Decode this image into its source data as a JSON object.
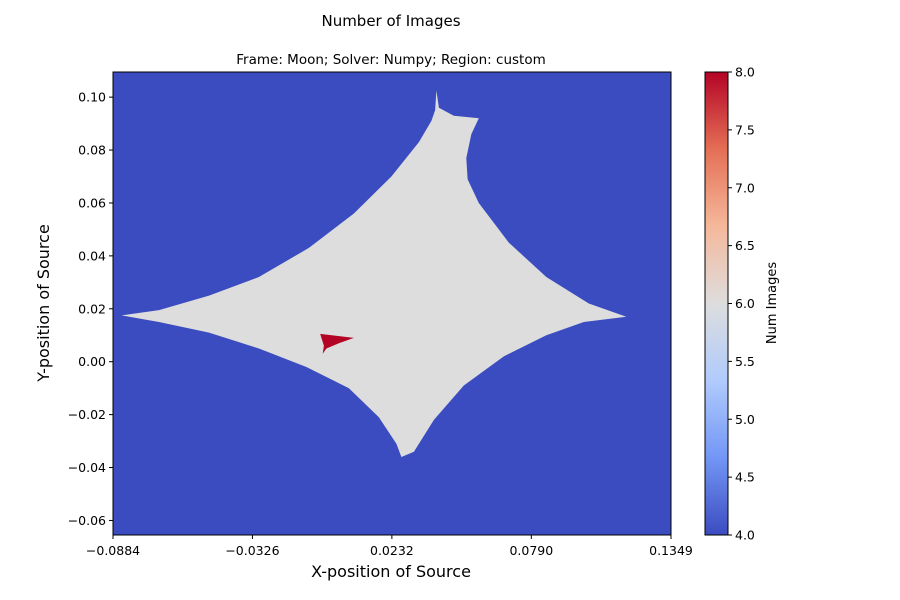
{
  "chart_data": {
    "type": "heatmap",
    "title": "Number of Images",
    "subtitle": "Frame: Moon; Solver: Numpy; Region: custom",
    "xlabel": "X-position of Source",
    "ylabel": "Y-position of Source",
    "xlim": [
      -0.0884,
      0.1349
    ],
    "ylim": [
      -0.0655,
      0.1095
    ],
    "x_ticks": [
      -0.0884,
      -0.0326,
      0.0232,
      0.079,
      0.1349
    ],
    "x_tick_labels": [
      "−0.0884",
      "−0.0326",
      "0.0232",
      "0.0790",
      "0.1349"
    ],
    "y_ticks": [
      -0.06,
      -0.04,
      -0.02,
      0.0,
      0.02,
      0.04,
      0.06,
      0.08,
      0.1
    ],
    "y_tick_labels": [
      "−0.06",
      "−0.04",
      "−0.02",
      "0.00",
      "0.02",
      "0.04",
      "0.06",
      "0.08",
      "0.10"
    ],
    "colorbar": {
      "label": "Num Images",
      "range": [
        4.0,
        8.0
      ],
      "ticks": [
        4.0,
        4.5,
        5.0,
        5.5,
        6.0,
        6.5,
        7.0,
        7.5,
        8.0
      ],
      "tick_labels": [
        "4.0",
        "4.5",
        "5.0",
        "5.5",
        "6.0",
        "6.5",
        "7.0",
        "7.5",
        "8.0"
      ],
      "colormap": "coolwarm",
      "colors": [
        "#3b4cc0",
        "#7396f5",
        "#b0cbfc",
        "#dddddd",
        "#f5b89b",
        "#e46f55",
        "#b40426"
      ]
    },
    "background_value": 4,
    "regions": [
      {
        "value": 6,
        "color": "#dddddd",
        "outline": [
          [
            0.041,
            0.1025
          ],
          [
            0.042,
            0.096
          ],
          [
            0.048,
            0.093
          ],
          [
            0.058,
            0.092
          ],
          [
            0.055,
            0.086
          ],
          [
            0.053,
            0.077
          ],
          [
            0.0535,
            0.069
          ],
          [
            0.058,
            0.06
          ],
          [
            0.07,
            0.045
          ],
          [
            0.085,
            0.032
          ],
          [
            0.102,
            0.022
          ],
          [
            0.117,
            0.017
          ],
          [
            0.1,
            0.015
          ],
          [
            0.085,
            0.01
          ],
          [
            0.068,
            0.002
          ],
          [
            0.052,
            -0.009
          ],
          [
            0.04,
            -0.022
          ],
          [
            0.032,
            -0.034
          ],
          [
            0.027,
            -0.036
          ],
          [
            0.025,
            -0.031
          ],
          [
            0.018,
            -0.021
          ],
          [
            0.006,
            -0.01
          ],
          [
            -0.011,
            -0.002
          ],
          [
            -0.03,
            0.005
          ],
          [
            -0.05,
            0.011
          ],
          [
            -0.07,
            0.015
          ],
          [
            -0.085,
            0.0175
          ],
          [
            -0.07,
            0.0195
          ],
          [
            -0.05,
            0.025
          ],
          [
            -0.03,
            0.032
          ],
          [
            -0.01,
            0.043
          ],
          [
            0.008,
            0.056
          ],
          [
            0.023,
            0.07
          ],
          [
            0.034,
            0.083
          ],
          [
            0.039,
            0.091
          ],
          [
            0.0405,
            0.095
          ]
        ]
      },
      {
        "value": 8,
        "color": "#b40426",
        "outline": [
          [
            -0.0055,
            0.0105
          ],
          [
            0.008,
            0.009
          ],
          [
            0.002,
            0.007
          ],
          [
            -0.003,
            0.005
          ],
          [
            -0.0045,
            0.003
          ],
          [
            -0.004,
            0.006
          ],
          [
            -0.005,
            0.009
          ]
        ]
      }
    ]
  }
}
